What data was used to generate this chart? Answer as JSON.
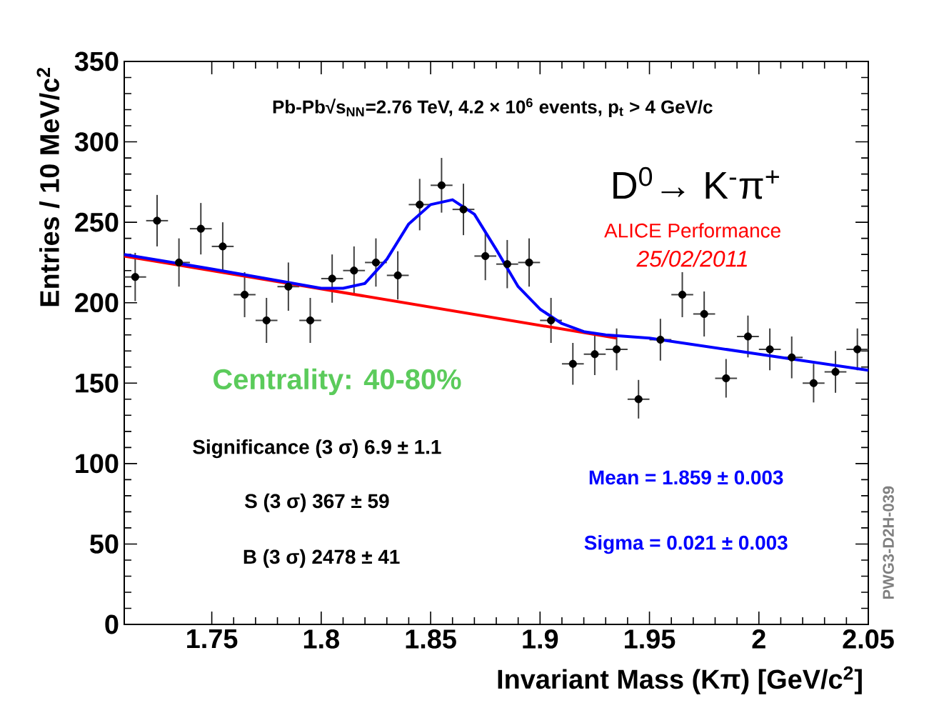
{
  "chart_data": {
    "type": "scatter",
    "xlabel": "Invariant Mass (Kπ) [GeV/c$^{2}$]",
    "ylabel": "Entries / 10 MeV/c$^{2}$",
    "xlim": [
      1.71,
      2.05
    ],
    "ylim": [
      0,
      350
    ],
    "xticks": [
      1.75,
      1.8,
      1.85,
      1.9,
      1.95,
      2,
      2.05
    ],
    "yticks": [
      0,
      50,
      100,
      150,
      200,
      250,
      300,
      350
    ],
    "grid": false,
    "series": [
      {
        "color": "#000000",
        "marker": "circle",
        "x": [
          1.715,
          1.725,
          1.735,
          1.745,
          1.755,
          1.765,
          1.775,
          1.785,
          1.795,
          1.805,
          1.815,
          1.825,
          1.835,
          1.845,
          1.855,
          1.865,
          1.875,
          1.885,
          1.895,
          1.905,
          1.915,
          1.925,
          1.935,
          1.945,
          1.955,
          1.965,
          1.975,
          1.985,
          1.995,
          2.005,
          2.015,
          2.025,
          2.035,
          2.045
        ],
        "values": [
          216,
          251,
          225,
          246,
          235,
          205,
          189,
          210,
          189,
          215,
          220,
          225,
          217,
          261,
          273,
          258,
          229,
          224,
          225,
          189,
          162,
          168,
          171,
          140,
          177,
          205,
          193,
          153,
          179,
          171,
          166,
          150,
          157,
          171
        ],
        "errors": [
          15,
          16,
          15,
          16,
          15,
          14,
          14,
          15,
          14,
          15,
          15,
          15,
          15,
          16,
          17,
          16,
          15,
          15,
          15,
          14,
          13,
          13,
          13,
          12,
          13,
          14,
          14,
          12,
          13,
          13,
          13,
          12,
          13,
          13
        ],
        "xerrors": [
          0.005,
          0.005,
          0.005,
          0.005,
          0.005,
          0.005,
          0.005,
          0.005,
          0.005,
          0.005,
          0.005,
          0.005,
          0.005,
          0.005,
          0.005,
          0.005,
          0.005,
          0.005,
          0.005,
          0.005,
          0.005,
          0.005,
          0.005,
          0.005,
          0.005,
          0.005,
          0.005,
          0.005,
          0.005,
          0.005,
          0.005,
          0.005,
          0.005,
          0.005
        ]
      },
      {
        "type": "line",
        "color": "#ff0000",
        "marker": "none",
        "x": [
          1.71,
          1.935
        ],
        "values": [
          229,
          178
        ]
      },
      {
        "type": "line",
        "color": "#0000ff",
        "marker": "none",
        "x": [
          1.71,
          1.75,
          1.8,
          1.81,
          1.82,
          1.83,
          1.84,
          1.85,
          1.86,
          1.87,
          1.88,
          1.89,
          1.9,
          1.91,
          1.92,
          1.93,
          1.95,
          2.0,
          2.05
        ],
        "values": [
          230,
          221,
          209,
          209,
          212,
          227,
          249,
          261,
          264,
          255,
          233,
          210,
          196,
          187,
          182,
          180,
          178,
          168,
          158
        ]
      }
    ],
    "annotations": [
      "Pb-Pb√s$_{NN}$=2.76 TeV, 4.2 × 10$^{6}$ events, p$_{t}$ > 4 GeV/c",
      "D$^{0}$→ K$^{-}$π$^{+}$",
      "ALICE Performance",
      "25/02/2011",
      "Centrality: 40-80%",
      "Significance (3 σ) 6.9 ± 1.1",
      "S (3 σ) 367 ± 59",
      "B (3 σ) 2478 ± 41",
      "Mean = 1.859 ± 0.003",
      "Sigma = 0.021 ± 0.003",
      "PWG3-D2H-039"
    ]
  }
}
